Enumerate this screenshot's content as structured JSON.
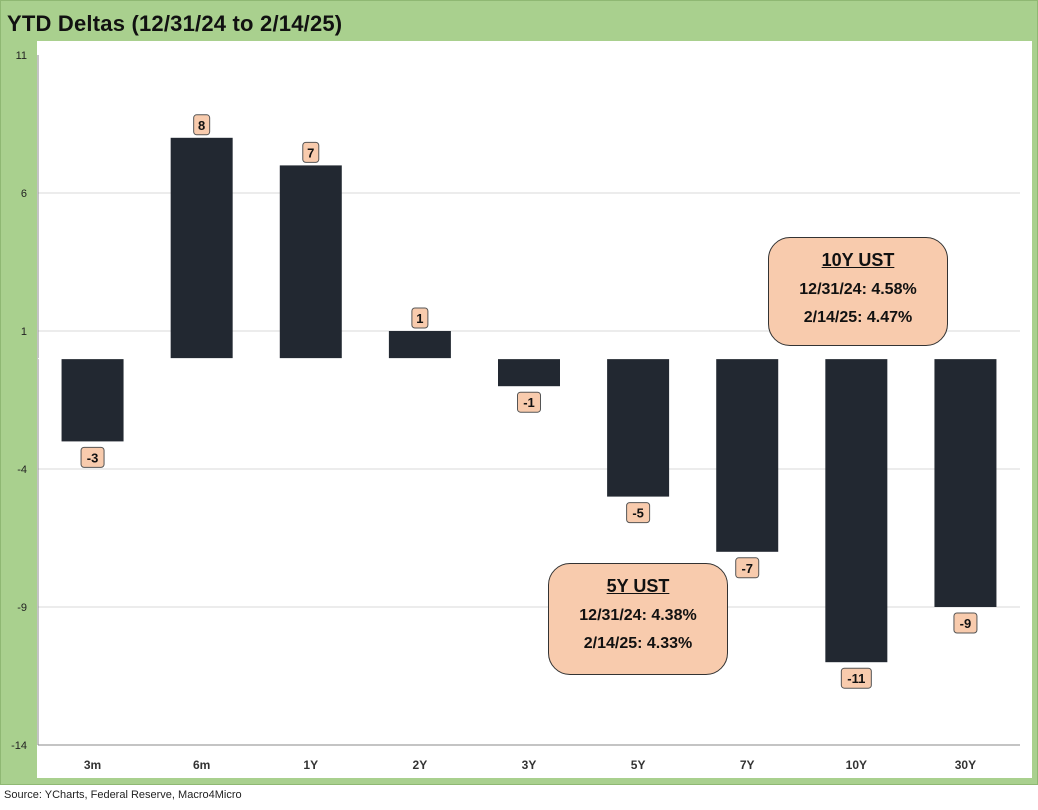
{
  "title": "YTD Deltas (12/31/24 to 2/14/25)",
  "source": "Source: YCharts, Federal Reserve, Macro4Micro",
  "colors": {
    "background": "#a9d08e",
    "plot": "#ffffff",
    "bar": "#222831",
    "label_fill": "#f8cbad",
    "gridline": "#d9d9d9"
  },
  "chart_data": {
    "type": "bar",
    "title": "YTD Deltas (12/31/24 to 2/14/25)",
    "xlabel": "",
    "ylabel": "",
    "categories": [
      "3m",
      "6m",
      "1Y",
      "2Y",
      "3Y",
      "5Y",
      "7Y",
      "10Y",
      "30Y"
    ],
    "values": [
      -3,
      8,
      7,
      1,
      -1,
      -5,
      -7,
      -11,
      -9
    ],
    "data_labels": [
      "-3",
      "8",
      "7",
      "1",
      "-1",
      "-5",
      "-7",
      "-11",
      "-9"
    ],
    "ylim": [
      -14,
      11
    ],
    "yticks": [
      11,
      6,
      1,
      -4,
      -9,
      -14
    ],
    "grid": true,
    "legend": "none"
  },
  "callouts": {
    "ten_year": {
      "title": "10Y UST",
      "line1": "12/31/24: 4.58%",
      "line2": "2/14/25: 4.47%"
    },
    "five_year": {
      "title": "5Y UST",
      "line1": "12/31/24: 4.38%",
      "line2": "2/14/25: 4.33%"
    }
  }
}
